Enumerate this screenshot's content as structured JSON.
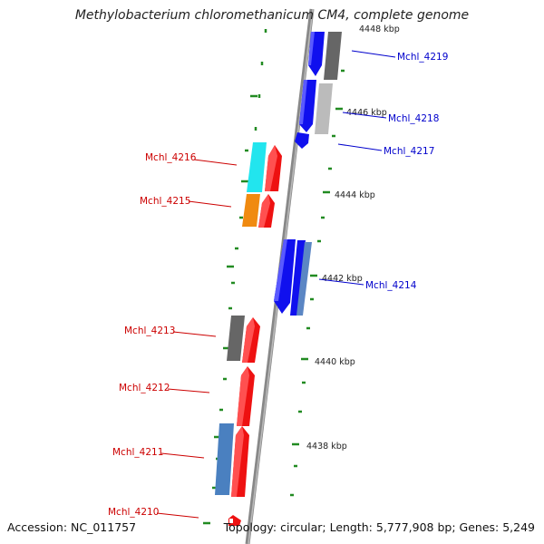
{
  "header": {
    "title": "Methylobacterium chloromethanicum CM4, complete genome"
  },
  "footer": {
    "accession": "Accession: NC_011757",
    "topology": "Topology: circular; Length: 5,777,908 bp; Genes: 5,249"
  },
  "colors": {
    "backbone": "#808080",
    "tick": "#228B22",
    "label_forward": "#0000cc",
    "label_reverse": "#cc0000"
  },
  "scale_labels": [
    {
      "text": "4448 kbp"
    },
    {
      "text": "4446 kbp"
    },
    {
      "text": "4444 kbp"
    },
    {
      "text": "4442 kbp"
    },
    {
      "text": "4440 kbp"
    },
    {
      "text": "4438 kbp"
    }
  ],
  "gene_labels": [
    {
      "id": "Mchl_4219"
    },
    {
      "id": "Mchl_4218"
    },
    {
      "id": "Mchl_4217"
    },
    {
      "id": "Mchl_4216"
    },
    {
      "id": "Mchl_4215"
    },
    {
      "id": "Mchl_4214"
    },
    {
      "id": "Mchl_4213"
    },
    {
      "id": "Mchl_4212"
    },
    {
      "id": "Mchl_4211"
    },
    {
      "id": "Mchl_4210"
    }
  ]
}
